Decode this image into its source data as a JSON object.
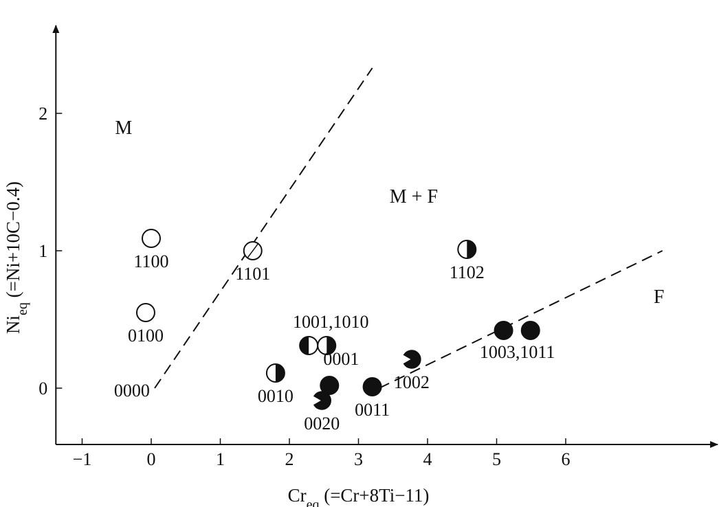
{
  "chart_data": {
    "type": "scatter",
    "title": "",
    "xlabel": {
      "main": "Cr",
      "sub": "eq",
      "rest": " (=Cr+8Ti−11)"
    },
    "ylabel": {
      "main": "Ni",
      "sub": "eq",
      "rest": " (=Ni+10C−0.4)"
    },
    "xlim": [
      -1.4,
      8.2
    ],
    "ylim": [
      -0.4,
      2.7
    ],
    "x_ticks": [
      -1,
      0,
      1,
      2,
      3,
      4,
      5,
      6
    ],
    "x_tick_labels": [
      "−1",
      "0",
      "1",
      "2",
      "3",
      "4",
      "5",
      "6"
    ],
    "y_ticks": [
      0,
      1,
      2
    ],
    "y_tick_labels": [
      "0",
      "1",
      "2"
    ],
    "grid": false,
    "regions": [
      {
        "label": "M",
        "x": -0.4,
        "y": 1.85
      },
      {
        "label": "M + F",
        "x": 3.8,
        "y": 1.35
      },
      {
        "label": "F",
        "x": 7.35,
        "y": 0.62
      }
    ],
    "boundary_lines": [
      {
        "x": [
          0.05,
          3.2
        ],
        "y": [
          0.0,
          2.33
        ],
        "style": "dashed"
      },
      {
        "x": [
          3.3,
          7.4
        ],
        "y": [
          0.0,
          1.0
        ],
        "style": "dashed"
      }
    ],
    "points": [
      {
        "label": "1100",
        "x": 0.0,
        "y": 1.09,
        "fill": "open"
      },
      {
        "label": "0100",
        "x": -0.08,
        "y": 0.55,
        "fill": "open"
      },
      {
        "label": "1101",
        "x": 1.47,
        "y": 1.0,
        "fill": "open-slash"
      },
      {
        "label": "",
        "x": 2.28,
        "y": 0.31,
        "fill": "half-left"
      },
      {
        "label": "",
        "x": 2.54,
        "y": 0.31,
        "fill": "half-right"
      },
      {
        "label": "0010",
        "x": 1.8,
        "y": 0.11,
        "fill": "half-right"
      },
      {
        "label": "",
        "x": 2.58,
        "y": 0.02,
        "fill": "solid"
      },
      {
        "label": "0020",
        "x": 2.47,
        "y": -0.09,
        "fill": "pacman"
      },
      {
        "label": "0011",
        "x": 3.2,
        "y": 0.01,
        "fill": "solid"
      },
      {
        "label": "1002",
        "x": 3.77,
        "y": 0.21,
        "fill": "pacman"
      },
      {
        "label": "1102",
        "x": 4.57,
        "y": 1.01,
        "fill": "half-right"
      },
      {
        "label": "",
        "x": 5.1,
        "y": 0.42,
        "fill": "solid"
      },
      {
        "label": "",
        "x": 5.49,
        "y": 0.42,
        "fill": "solid"
      }
    ],
    "annotations": [
      {
        "text": "1001,1010",
        "x": 2.6,
        "y": 0.44
      },
      {
        "text": "0001",
        "x": 2.75,
        "y": 0.17
      },
      {
        "text": "1003,1011",
        "x": 5.3,
        "y": 0.22
      },
      {
        "text": "0000",
        "x": -0.28,
        "y": -0.06
      }
    ]
  }
}
